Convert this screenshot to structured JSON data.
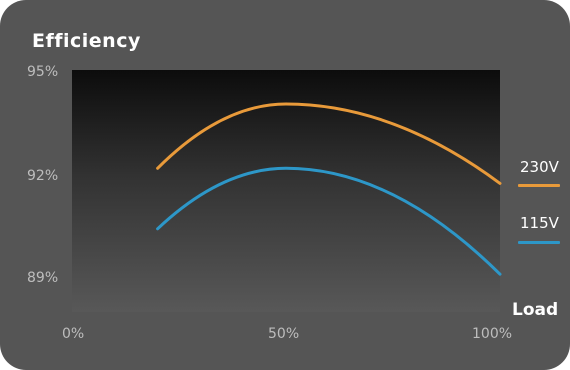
{
  "chart_data": {
    "type": "line",
    "title": "Efficiency",
    "xlabel": "Load",
    "ylabel": "",
    "x_ticks": [
      "0%",
      "50%",
      "100%"
    ],
    "y_ticks": [
      "95%",
      "92%",
      "89%"
    ],
    "xlim": [
      0,
      100
    ],
    "ylim": [
      88.8,
      95.2
    ],
    "grid": false,
    "legend_position": "right",
    "series": [
      {
        "name": "230V",
        "color": "#e89a3a",
        "x": [
          20,
          50,
          100
        ],
        "y": [
          92.6,
          94.3,
          92.2
        ]
      },
      {
        "name": "115V",
        "color": "#2d97c8",
        "x": [
          20,
          50,
          100
        ],
        "y": [
          91.0,
          92.6,
          89.8
        ]
      }
    ]
  }
}
